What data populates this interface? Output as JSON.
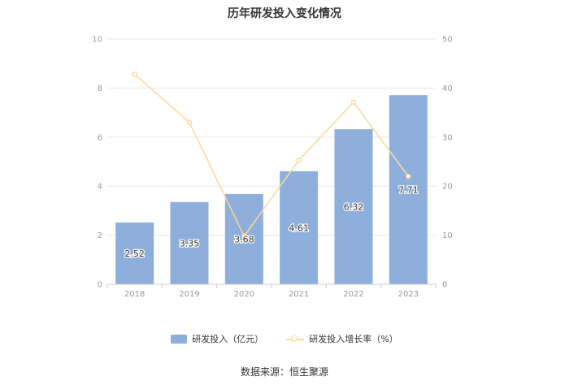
{
  "chart_data": {
    "type": "bar",
    "title": "历年研发投入变化情况",
    "categories": [
      "2018",
      "2019",
      "2020",
      "2021",
      "2022",
      "2023"
    ],
    "series": [
      {
        "name": "研发投入（亿元）",
        "type": "bar",
        "axis": "left",
        "color": "#8eaedb",
        "values": [
          2.52,
          3.35,
          3.68,
          4.61,
          6.32,
          7.71
        ],
        "labels": [
          "2.52",
          "3.35",
          "3.68",
          "4.61",
          "6.32",
          "7.71"
        ]
      },
      {
        "name": "研发投入增长率（%）",
        "type": "line",
        "axis": "right",
        "color": "#fdd89a",
        "values": [
          42.8,
          33.0,
          9.8,
          25.3,
          37.1,
          22.0
        ]
      }
    ],
    "y_left": {
      "min": 0,
      "max": 10,
      "ticks": [
        "0",
        "2",
        "4",
        "6",
        "8",
        "10"
      ]
    },
    "y_right": {
      "min": 0,
      "max": 50,
      "ticks": [
        "0",
        "10",
        "20",
        "30",
        "40",
        "50"
      ]
    },
    "grid": true,
    "legend_position": "bottom"
  },
  "source": "数据来源：恒生聚源"
}
